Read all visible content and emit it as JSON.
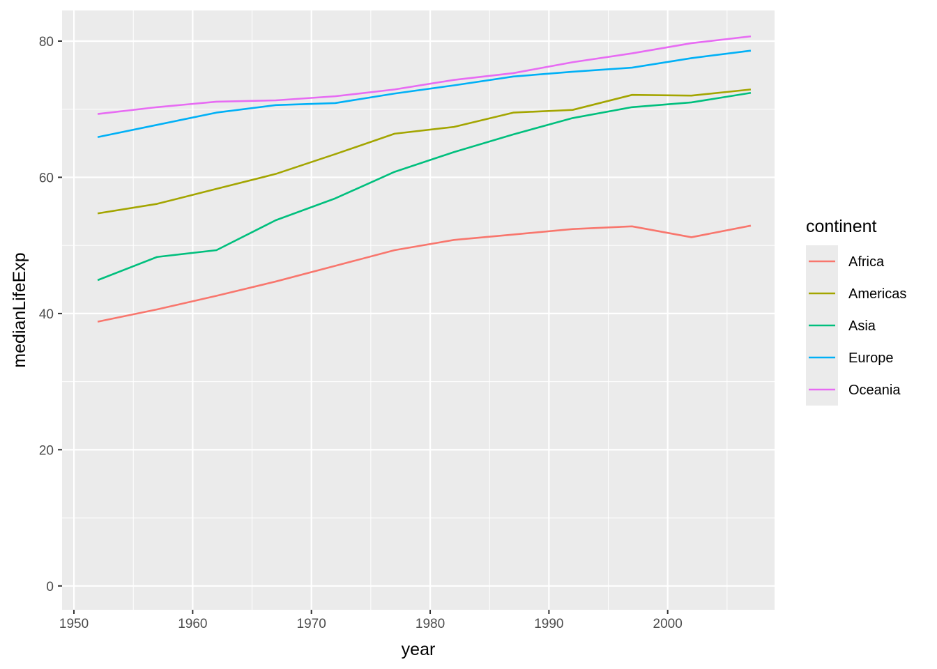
{
  "chart_data": {
    "type": "line",
    "xlabel": "year",
    "ylabel": "medianLifeExp",
    "xlim": [
      1949,
      2009
    ],
    "ylim": [
      -3.5,
      84.5
    ],
    "x_ticks": [
      1950,
      1960,
      1970,
      1980,
      1990,
      2000
    ],
    "y_ticks": [
      0,
      20,
      40,
      60,
      80
    ],
    "x_minor_ticks": [
      1955,
      1965,
      1975,
      1985,
      1995,
      2005
    ],
    "y_minor_ticks": [
      10,
      30,
      50,
      70
    ],
    "grid": true,
    "legend": {
      "title": "continent",
      "position": "right"
    },
    "x": [
      1952,
      1957,
      1962,
      1967,
      1972,
      1977,
      1982,
      1987,
      1992,
      1997,
      2002,
      2007
    ],
    "series": [
      {
        "name": "Africa",
        "color": "#F8766D",
        "values": [
          38.8,
          40.6,
          42.6,
          44.7,
          47.0,
          49.3,
          50.8,
          51.6,
          52.4,
          52.8,
          51.2,
          52.9
        ]
      },
      {
        "name": "Americas",
        "color": "#A3A500",
        "values": [
          54.7,
          56.1,
          58.3,
          60.5,
          63.4,
          66.4,
          67.4,
          69.5,
          69.9,
          72.1,
          72.0,
          72.9
        ]
      },
      {
        "name": "Asia",
        "color": "#00BF7D",
        "values": [
          44.9,
          48.3,
          49.3,
          53.7,
          56.9,
          60.8,
          63.7,
          66.3,
          68.7,
          70.3,
          71.0,
          72.4
        ]
      },
      {
        "name": "Europe",
        "color": "#00B0F6",
        "values": [
          65.9,
          67.7,
          69.5,
          70.6,
          70.9,
          72.3,
          73.5,
          74.8,
          75.5,
          76.1,
          77.5,
          78.6
        ]
      },
      {
        "name": "Oceania",
        "color": "#E76BF3",
        "values": [
          69.3,
          70.3,
          71.1,
          71.3,
          71.9,
          72.9,
          74.3,
          75.3,
          76.9,
          78.2,
          79.7,
          80.7
        ]
      }
    ]
  }
}
